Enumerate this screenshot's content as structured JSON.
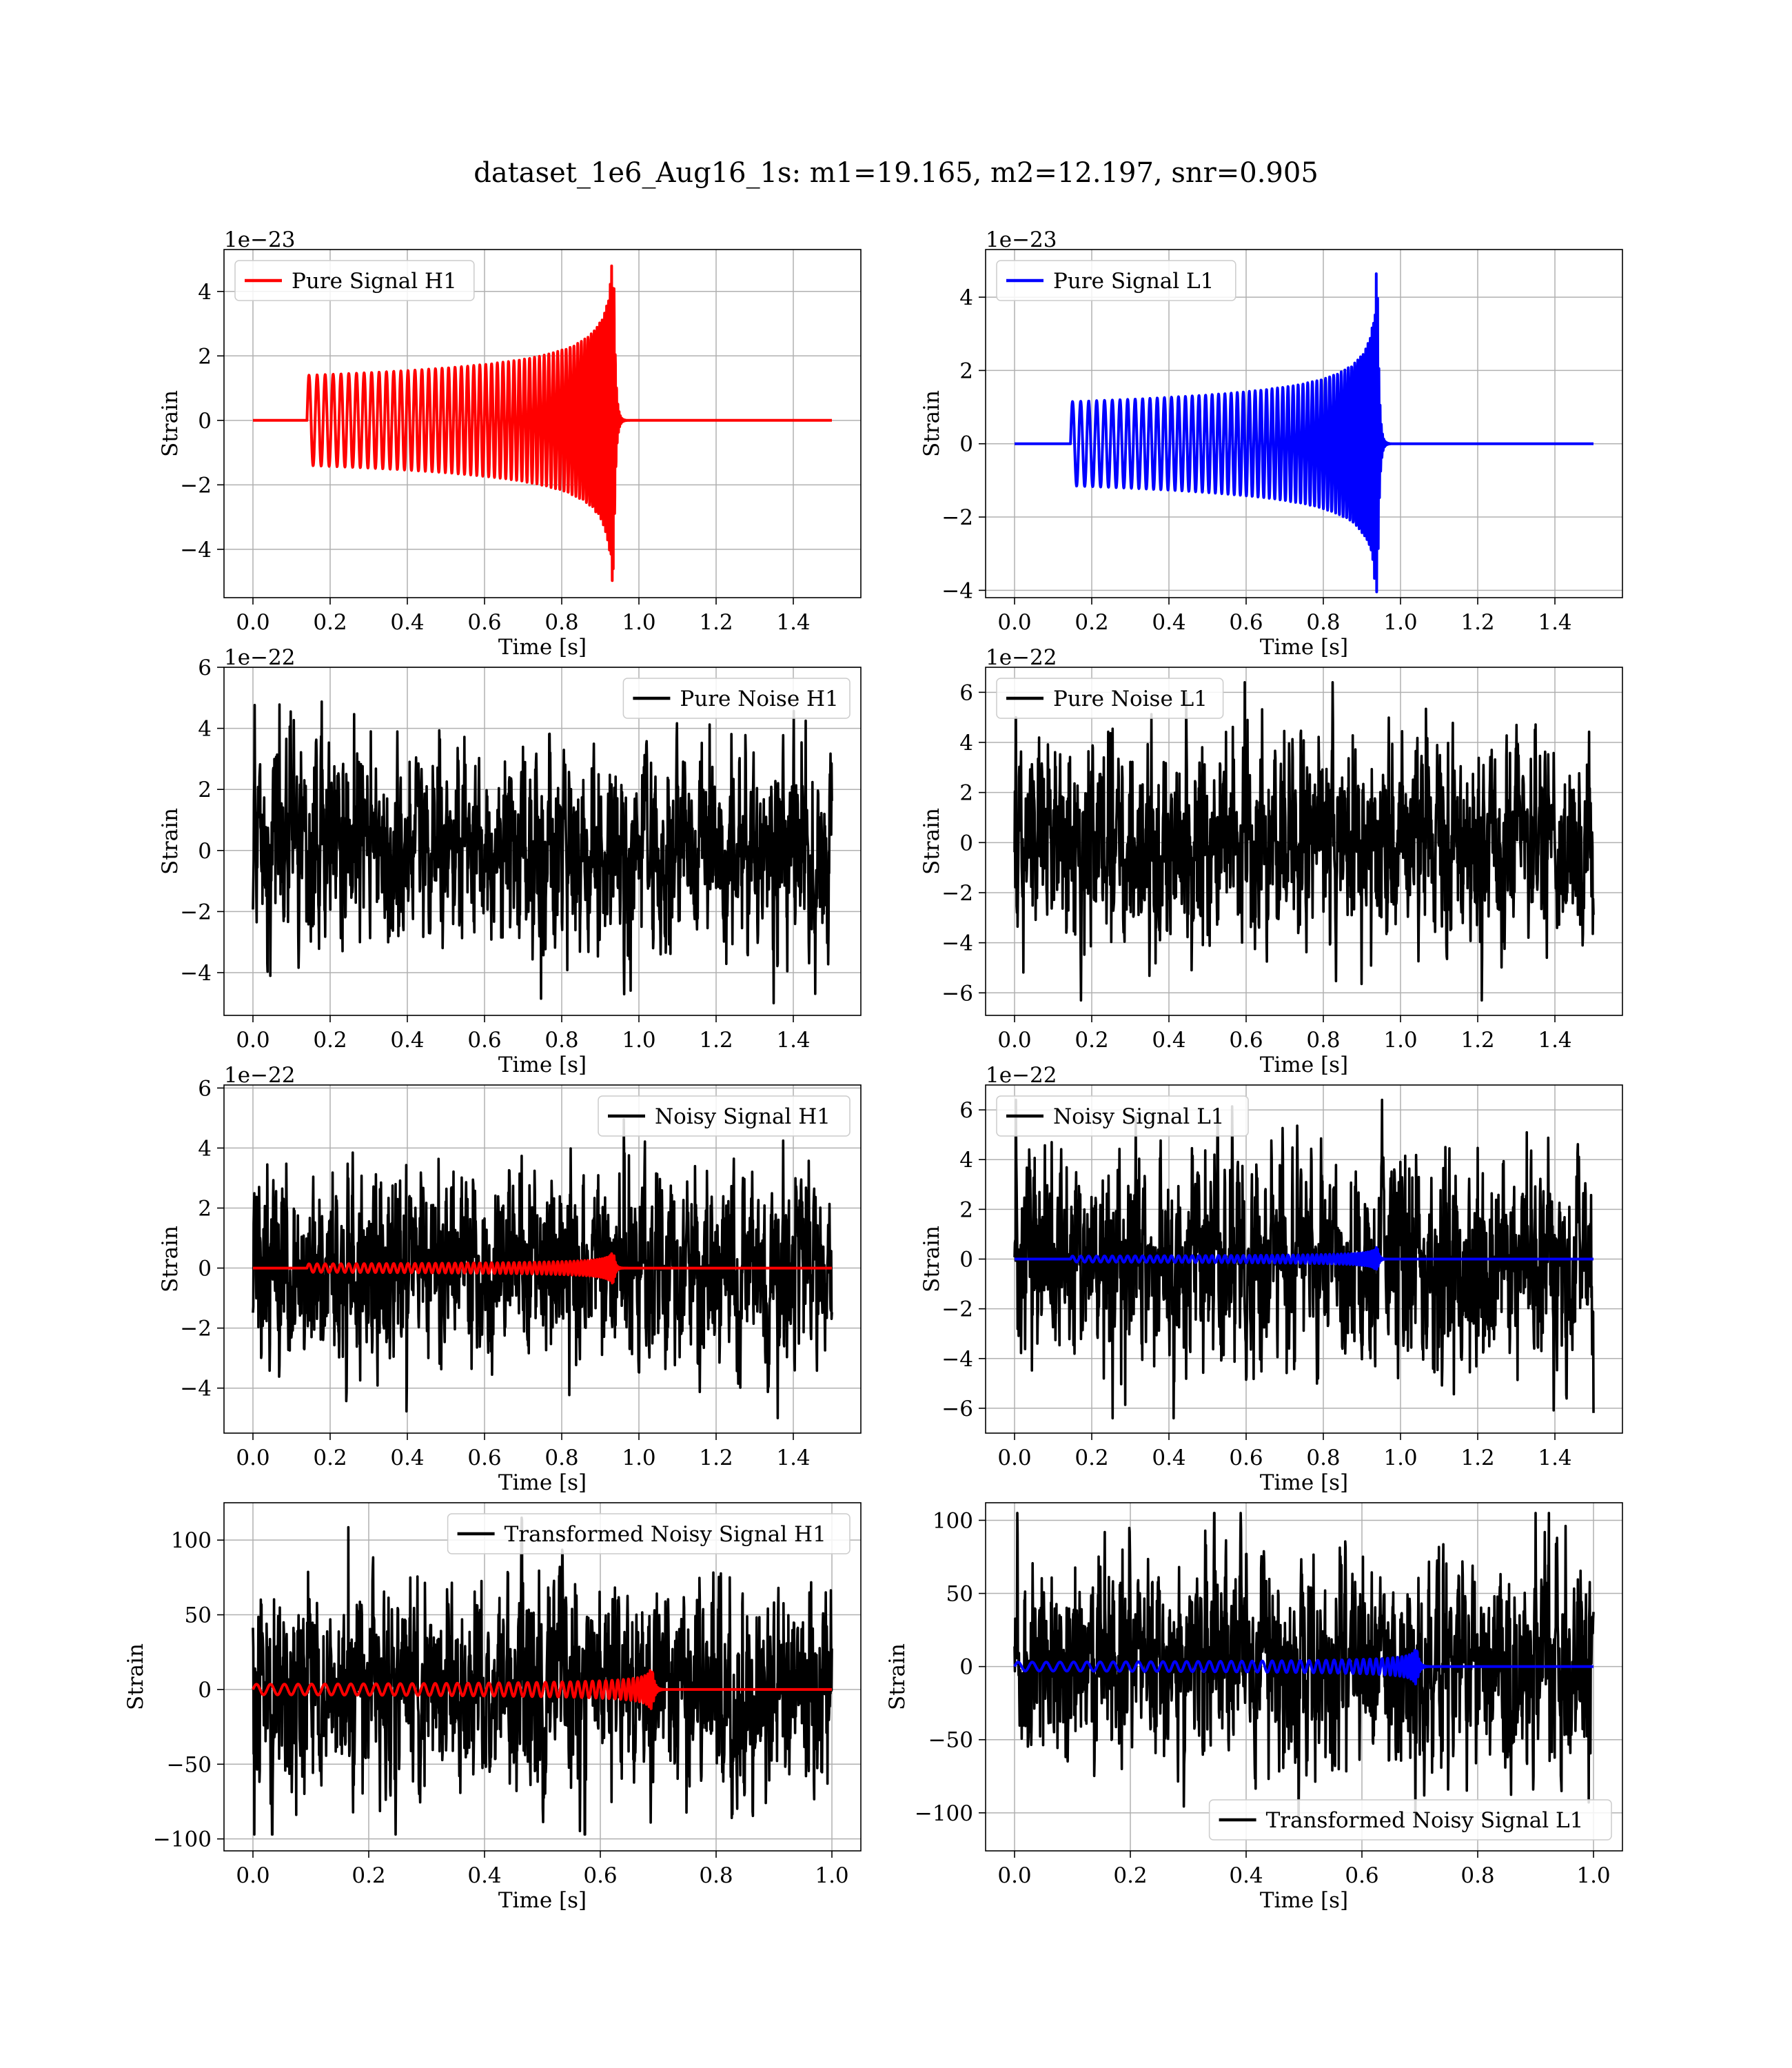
{
  "figure_title": "dataset_1e6_Aug16_1s: m1=19.165, m2=12.197, snr=0.905",
  "colors": {
    "h1_signal": "#ff0000",
    "l1_signal": "#0000ff",
    "noise": "#000000",
    "grid": "#b0b0b0"
  },
  "chart_data": [
    {
      "id": "pure-signal-h1",
      "type": "line",
      "xlabel": "Time [s]",
      "ylabel": "Strain",
      "offset_text": "1e−23",
      "xlim": [
        -0.075,
        1.575
      ],
      "ylim": [
        -5.5,
        5.3
      ],
      "xticks": [
        0.0,
        0.2,
        0.4,
        0.6,
        0.8,
        1.0,
        1.2,
        1.4
      ],
      "xtick_labels": [
        "0.0",
        "0.2",
        "0.4",
        "0.6",
        "0.8",
        "1.0",
        "1.2",
        "1.4"
      ],
      "yticks": [
        -4,
        -2,
        0,
        2,
        4
      ],
      "ytick_labels": [
        "−4",
        "−2",
        "0",
        "2",
        "4"
      ],
      "legend": {
        "label": "Pure Signal H1",
        "position": "upper left"
      },
      "series": [
        {
          "name": "Pure Signal H1",
          "color": "#ff0000",
          "kind": "chirp",
          "t_start": 0.14,
          "t_merge": 0.935,
          "t_end": 1.5,
          "amp_start": 1.4,
          "amp_peak": 5.0,
          "cycles": 60
        }
      ]
    },
    {
      "id": "pure-signal-l1",
      "type": "line",
      "xlabel": "Time [s]",
      "ylabel": "Strain",
      "offset_text": "1e−23",
      "xlim": [
        -0.075,
        1.575
      ],
      "ylim": [
        -4.2,
        5.3
      ],
      "xticks": [
        0.0,
        0.2,
        0.4,
        0.6,
        0.8,
        1.0,
        1.2,
        1.4
      ],
      "xtick_labels": [
        "0.0",
        "0.2",
        "0.4",
        "0.6",
        "0.8",
        "1.0",
        "1.2",
        "1.4"
      ],
      "yticks": [
        -4,
        -2,
        0,
        2,
        4
      ],
      "ytick_labels": [
        "−4",
        "−2",
        "0",
        "2",
        "4"
      ],
      "legend": {
        "label": "Pure Signal L1",
        "position": "upper left"
      },
      "series": [
        {
          "name": "Pure Signal L1",
          "color": "#0000ff",
          "kind": "chirp",
          "t_start": 0.145,
          "t_merge": 0.94,
          "t_end": 1.5,
          "amp_start": 1.15,
          "amp_peak": 4.7,
          "cycles": 60
        }
      ]
    },
    {
      "id": "pure-noise-h1",
      "type": "line",
      "xlabel": "Time [s]",
      "ylabel": "Strain",
      "offset_text": "1e−22",
      "xlim": [
        -0.075,
        1.575
      ],
      "ylim": [
        -5.4,
        6.0
      ],
      "xticks": [
        0.0,
        0.2,
        0.4,
        0.6,
        0.8,
        1.0,
        1.2,
        1.4
      ],
      "xtick_labels": [
        "0.0",
        "0.2",
        "0.4",
        "0.6",
        "0.8",
        "1.0",
        "1.2",
        "1.4"
      ],
      "yticks": [
        -4,
        -2,
        0,
        2,
        4,
        6
      ],
      "ytick_labels": [
        "−4",
        "−2",
        "0",
        "2",
        "4",
        "6"
      ],
      "legend": {
        "label": "Pure Noise H1",
        "position": "upper right"
      },
      "series": [
        {
          "name": "Pure Noise H1",
          "color": "#000000",
          "kind": "noise",
          "t_start": 0.0,
          "t_end": 1.5,
          "amp_min": -5.0,
          "amp_max": 5.2
        }
      ]
    },
    {
      "id": "pure-noise-l1",
      "type": "line",
      "xlabel": "Time [s]",
      "ylabel": "Strain",
      "offset_text": "1e−22",
      "xlim": [
        -0.075,
        1.575
      ],
      "ylim": [
        -6.9,
        7.0
      ],
      "xticks": [
        0.0,
        0.2,
        0.4,
        0.6,
        0.8,
        1.0,
        1.2,
        1.4
      ],
      "xtick_labels": [
        "0.0",
        "0.2",
        "0.4",
        "0.6",
        "0.8",
        "1.0",
        "1.2",
        "1.4"
      ],
      "yticks": [
        -6,
        -4,
        -2,
        0,
        2,
        4,
        6
      ],
      "ytick_labels": [
        "−6",
        "−4",
        "−2",
        "0",
        "2",
        "4",
        "6"
      ],
      "legend": {
        "label": "Pure Noise L1",
        "position": "upper left"
      },
      "series": [
        {
          "name": "Pure Noise L1",
          "color": "#000000",
          "kind": "noise",
          "t_start": 0.0,
          "t_end": 1.5,
          "amp_min": -6.3,
          "amp_max": 6.4
        }
      ]
    },
    {
      "id": "noisy-signal-h1",
      "type": "line",
      "xlabel": "Time [s]",
      "ylabel": "Strain",
      "offset_text": "1e−22",
      "xlim": [
        -0.075,
        1.575
      ],
      "ylim": [
        -5.5,
        6.1
      ],
      "xticks": [
        0.0,
        0.2,
        0.4,
        0.6,
        0.8,
        1.0,
        1.2,
        1.4
      ],
      "xtick_labels": [
        "0.0",
        "0.2",
        "0.4",
        "0.6",
        "0.8",
        "1.0",
        "1.2",
        "1.4"
      ],
      "yticks": [
        -4,
        -2,
        0,
        2,
        4,
        6
      ],
      "ytick_labels": [
        "−4",
        "−2",
        "0",
        "2",
        "4",
        "6"
      ],
      "legend": {
        "label": "Noisy Signal H1",
        "position": "upper right"
      },
      "series": [
        {
          "name": "Noisy Signal H1",
          "color": "#000000",
          "kind": "noise",
          "t_start": 0.0,
          "t_end": 1.5,
          "amp_min": -5.0,
          "amp_max": 5.2
        },
        {
          "color": "#ff0000",
          "kind": "chirp",
          "t_start": 0.14,
          "t_merge": 0.935,
          "t_end": 1.5,
          "amp_start": 0.14,
          "amp_peak": 0.5,
          "cycles": 60
        }
      ]
    },
    {
      "id": "noisy-signal-l1",
      "type": "line",
      "xlabel": "Time [s]",
      "ylabel": "Strain",
      "offset_text": "1e−22",
      "xlim": [
        -0.075,
        1.575
      ],
      "ylim": [
        -7.0,
        7.0
      ],
      "xticks": [
        0.0,
        0.2,
        0.4,
        0.6,
        0.8,
        1.0,
        1.2,
        1.4
      ],
      "xtick_labels": [
        "0.0",
        "0.2",
        "0.4",
        "0.6",
        "0.8",
        "1.0",
        "1.2",
        "1.4"
      ],
      "yticks": [
        -6,
        -4,
        -2,
        0,
        2,
        4,
        6
      ],
      "ytick_labels": [
        "−6",
        "−4",
        "−2",
        "0",
        "2",
        "4",
        "6"
      ],
      "legend": {
        "label": "Noisy Signal L1",
        "position": "upper left"
      },
      "series": [
        {
          "name": "Noisy Signal L1",
          "color": "#000000",
          "kind": "noise",
          "t_start": 0.0,
          "t_end": 1.5,
          "amp_min": -6.4,
          "amp_max": 6.4
        },
        {
          "color": "#0000ff",
          "kind": "chirp",
          "t_start": 0.145,
          "t_merge": 0.94,
          "t_end": 1.5,
          "amp_start": 0.12,
          "amp_peak": 0.47,
          "cycles": 60
        }
      ]
    },
    {
      "id": "transformed-noisy-signal-h1",
      "type": "line",
      "xlabel": "Time [s]",
      "ylabel": "Strain",
      "offset_text": "",
      "xlim": [
        -0.05,
        1.05
      ],
      "ylim": [
        -108,
        125
      ],
      "xticks": [
        0.0,
        0.2,
        0.4,
        0.6,
        0.8,
        1.0
      ],
      "xtick_labels": [
        "0.0",
        "0.2",
        "0.4",
        "0.6",
        "0.8",
        "1.0"
      ],
      "yticks": [
        -100,
        -50,
        0,
        50,
        100
      ],
      "ytick_labels": [
        "−100",
        "−50",
        "0",
        "50",
        "100"
      ],
      "legend": {
        "label": "Transformed Noisy Signal H1",
        "position": "upper right"
      },
      "series": [
        {
          "name": "Transformed Noisy Signal H1",
          "color": "#000000",
          "kind": "noise",
          "t_start": 0.0,
          "t_end": 1.0,
          "amp_min": -97,
          "amp_max": 115
        },
        {
          "color": "#ff0000",
          "kind": "chirp",
          "t_start": 0.0,
          "t_merge": 0.69,
          "t_end": 1.0,
          "amp_start": 3.5,
          "amp_peak": 13,
          "cycles": 45
        }
      ]
    },
    {
      "id": "transformed-noisy-signal-l1",
      "type": "line",
      "xlabel": "Time [s]",
      "ylabel": "Strain",
      "offset_text": "",
      "xlim": [
        -0.05,
        1.05
      ],
      "ylim": [
        -126,
        112
      ],
      "xticks": [
        0.0,
        0.2,
        0.4,
        0.6,
        0.8,
        1.0
      ],
      "xtick_labels": [
        "0.0",
        "0.2",
        "0.4",
        "0.6",
        "0.8",
        "1.0"
      ],
      "yticks": [
        -100,
        -50,
        0,
        50,
        100
      ],
      "ytick_labels": [
        "−100",
        "−50",
        "0",
        "50",
        "100"
      ],
      "legend": {
        "label": "Transformed Noisy Signal L1",
        "position": "lower right"
      },
      "series": [
        {
          "name": "Transformed Noisy Signal L1",
          "color": "#000000",
          "kind": "noise",
          "t_start": 0.0,
          "t_end": 1.0,
          "amp_min": -111,
          "amp_max": 105
        },
        {
          "color": "#0000ff",
          "kind": "chirp",
          "t_start": 0.0,
          "t_merge": 0.695,
          "t_end": 1.0,
          "amp_start": 3.0,
          "amp_peak": 12,
          "cycles": 45
        }
      ]
    }
  ]
}
